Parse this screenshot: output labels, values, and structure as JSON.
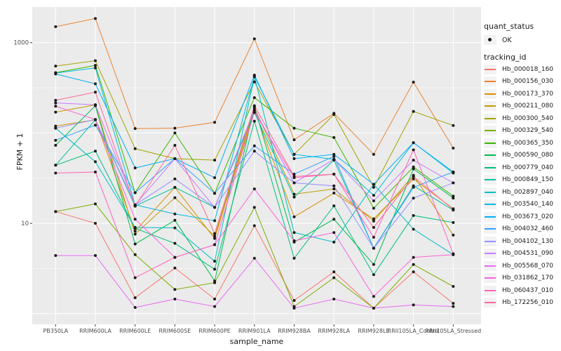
{
  "figure": {
    "y_axis": {
      "label": "FPKM + 1",
      "ticks": [
        {
          "value": 1000,
          "label": "1000"
        },
        {
          "value": 10,
          "label": "10"
        }
      ]
    },
    "x_axis": {
      "label": "sample_name",
      "categories": [
        "PB350LA",
        "RRIM600LA",
        "RRIM600LE",
        "RRIM600SE",
        "RRIM600PE",
        "RRIM901LA",
        "RRIM928BA",
        "RRIM928LA",
        "RRIM928LE",
        "RRII105LA_Control",
        "RRII105LA_Stressed"
      ]
    },
    "legend": {
      "quant_status": {
        "title": "quant_status",
        "items": [
          {
            "label": "OK",
            "glyph": "point",
            "color": "#1a1a1a"
          }
        ]
      },
      "tracking_id": {
        "title": "tracking_id"
      }
    },
    "colors": {
      "panel_bg": "#EBEBEB",
      "grid": "#FFFFFF",
      "point": "#1a1a1a",
      "tick_text": "#4D4D4D",
      "axis_title_text": "#1a1a1a",
      "legend_key_bg": "#F2F2F2"
    }
  },
  "chart_data": {
    "type": "line",
    "title": "",
    "xlabel": "sample_name",
    "ylabel": "FPKM + 1",
    "y_scale": "log10",
    "ylim": [
      0.75,
      2400
    ],
    "grid": true,
    "legend_position": "right",
    "marker": "black-point",
    "categories": [
      "PB350LA",
      "RRIM600LA",
      "RRIM600LE",
      "RRIM600SE",
      "RRIM600PE",
      "RRIM901LA",
      "RRIM928BA",
      "RRIM928LA",
      "RRIM928LE",
      "RRII105LA_Control",
      "RRII105LA_Stressed"
    ],
    "series": [
      {
        "name": "Hb_000018_160",
        "color": "#F8766D",
        "values": [
          13.5,
          10,
          1.5,
          3.2,
          1.45,
          9.4,
          1.4,
          2.9,
          1.15,
          2.9,
          1.3
        ]
      },
      {
        "name": "Hb_000156_030",
        "color": "#EA8331",
        "values": [
          1500,
          1850,
          112,
          113,
          131,
          1100,
          84,
          165,
          58,
          365,
          68
        ]
      },
      {
        "name": "Hb_000173_370",
        "color": "#D89000",
        "values": [
          119,
          140,
          8.2,
          25,
          6.8,
          178,
          11.8,
          21.6,
          11.2,
          31,
          14.5
        ]
      },
      {
        "name": "Hb_000211_080",
        "color": "#C09B00",
        "values": [
          170,
          205,
          7.6,
          19.2,
          7.2,
          190,
          21,
          24,
          10.6,
          34,
          7.4
        ]
      },
      {
        "name": "Hb_000300_540",
        "color": "#A3A500",
        "values": [
          550,
          630,
          67,
          52,
          50,
          368,
          58,
          160,
          25,
          173,
          121
        ]
      },
      {
        "name": "Hb_000329_540",
        "color": "#7CAE00",
        "values": [
          13.5,
          16.4,
          4.5,
          1.85,
          2.2,
          15,
          1.2,
          2.5,
          1.15,
          3.5,
          2.0
        ]
      },
      {
        "name": "Hb_000365_350",
        "color": "#39B600",
        "values": [
          465,
          560,
          21.8,
          100,
          21.5,
          246,
          113,
          89,
          14.7,
          42,
          20
        ]
      },
      {
        "name": "Hb_000590_080",
        "color": "#00BB4E",
        "values": [
          73,
          200,
          5.9,
          10.8,
          2.3,
          195,
          6.2,
          11.1,
          3.5,
          40,
          19
        ]
      },
      {
        "name": "Hb_000779_040",
        "color": "#00BF7D",
        "values": [
          44,
          63,
          8.8,
          6.0,
          3.1,
          135,
          4.1,
          15.6,
          2.7,
          12.2,
          10.2
        ]
      },
      {
        "name": "Hb_000849_150",
        "color": "#00C1A3",
        "values": [
          44,
          140,
          15.5,
          25,
          15,
          168,
          19.5,
          50,
          5.3,
          26,
          14
        ]
      },
      {
        "name": "Hb_002897_040",
        "color": "#00BFC4",
        "values": [
          113,
          48,
          9,
          8.9,
          3.8,
          420,
          7.9,
          6.2,
          27,
          8.6,
          4.5
        ]
      },
      {
        "name": "Hb_003540_140",
        "color": "#00BAE0",
        "values": [
          460,
          525,
          16,
          12.7,
          10.7,
          420,
          58,
          51,
          20.4,
          78,
          36
        ]
      },
      {
        "name": "Hb_003673_020",
        "color": "#00B0F6",
        "values": [
          450,
          350,
          41,
          52,
          32,
          437,
          52,
          58,
          27,
          78,
          37
        ]
      },
      {
        "name": "Hb_004032_460",
        "color": "#35A2FF",
        "values": [
          83,
          122,
          21.8,
          52,
          21.5,
          72,
          35,
          55,
          5.3,
          25,
          37
        ]
      },
      {
        "name": "Hb_004102_130",
        "color": "#9590FF",
        "values": [
          113,
          141,
          16,
          31,
          15,
          63,
          28,
          26,
          5.3,
          19,
          28
        ]
      },
      {
        "name": "Hb_004531_090",
        "color": "#C77CFF",
        "values": [
          215,
          205,
          16,
          52,
          15,
          180,
          28,
          51,
          17.7,
          50,
          28
        ]
      },
      {
        "name": "Hb_005568_070",
        "color": "#E76BF3",
        "values": [
          4.4,
          4.4,
          1.17,
          1.45,
          1.2,
          4.1,
          1.15,
          1.45,
          1.15,
          1.25,
          1.2
        ]
      },
      {
        "name": "Hb_031862_170",
        "color": "#FA62DB",
        "values": [
          198,
          141,
          11.1,
          4.2,
          5.8,
          24,
          6.4,
          7.9,
          1.55,
          4.2,
          4.5
        ]
      },
      {
        "name": "Hb_060437_010",
        "color": "#FF62BC",
        "values": [
          36,
          37,
          2.5,
          4.2,
          5.8,
          170,
          32,
          35,
          7,
          65,
          4.6
        ]
      },
      {
        "name": "Hb_172256_010",
        "color": "#FF6A98",
        "values": [
          230,
          283,
          15.5,
          73,
          7.7,
          200,
          33,
          35,
          9,
          33,
          14.2
        ]
      }
    ]
  }
}
